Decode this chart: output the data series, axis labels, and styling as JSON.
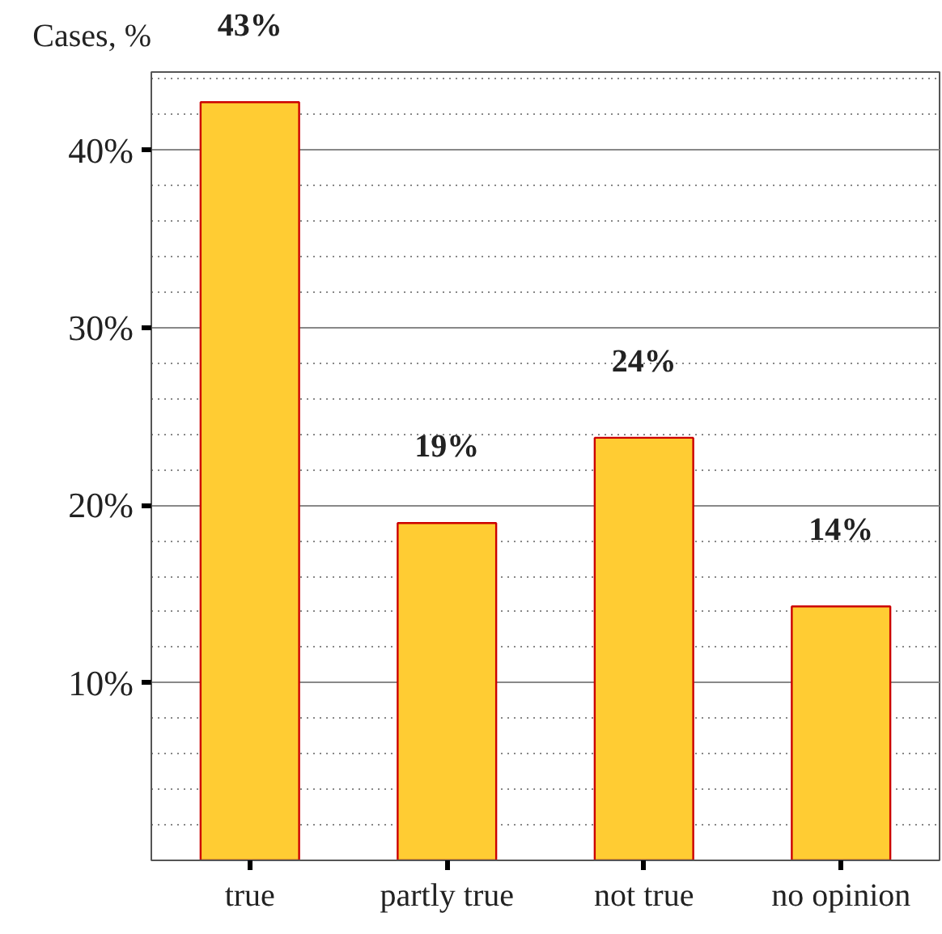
{
  "chart_data": {
    "type": "bar",
    "ylabel": "Cases, %",
    "categories": [
      "true",
      "partly true",
      "not true",
      "no opinion"
    ],
    "values": [
      42.7,
      19.0,
      23.8,
      14.3
    ],
    "value_labels": [
      "43%",
      "19%",
      "24%",
      "14%"
    ],
    "color": "#ffcc33",
    "ylim": [
      0,
      44.4
    ],
    "yticks": [
      {
        "value": 10,
        "label": "10%"
      },
      {
        "value": 20,
        "label": "20%"
      },
      {
        "value": 30,
        "label": "30%"
      },
      {
        "value": 40,
        "label": "40%"
      }
    ],
    "grid": "y"
  }
}
